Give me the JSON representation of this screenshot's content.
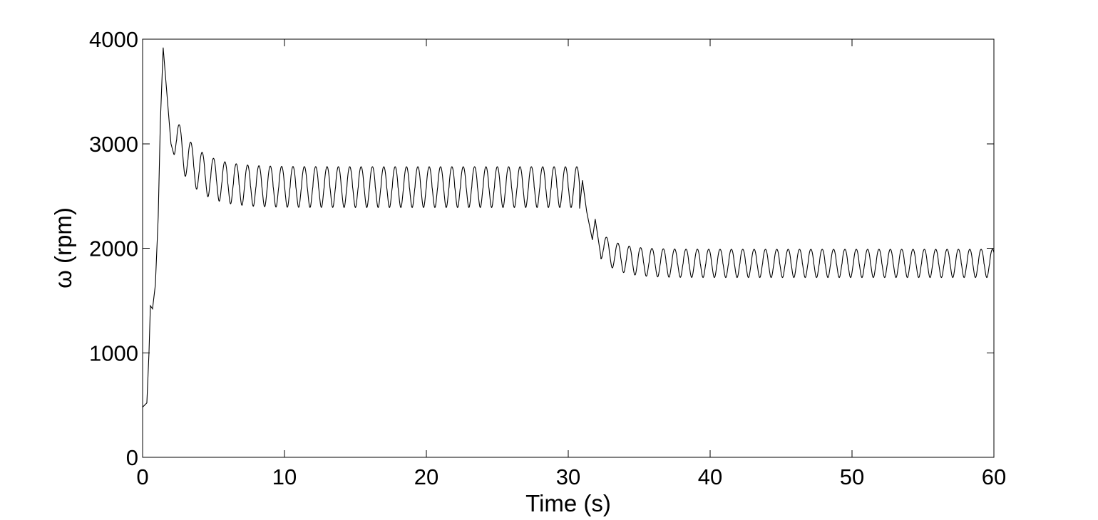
{
  "chart_data": {
    "type": "line",
    "xlabel": "Time (s)",
    "ylabel": "ω (rpm)",
    "xlim": [
      0,
      60
    ],
    "ylim": [
      0,
      4000
    ],
    "xticks": [
      "0",
      "10",
      "20",
      "30",
      "40",
      "50",
      "60"
    ],
    "yticks": [
      "0",
      "1000",
      "2000",
      "3000",
      "4000"
    ],
    "grid": false,
    "line_color": "#000000",
    "series": [
      {
        "description_points": [
          [
            0.0,
            480
          ],
          [
            0.3,
            520
          ],
          [
            0.45,
            1000
          ],
          [
            0.55,
            1450
          ],
          [
            0.7,
            1420
          ],
          [
            0.9,
            1650
          ],
          [
            1.1,
            2300
          ],
          [
            1.25,
            3200
          ],
          [
            1.45,
            3920
          ],
          [
            1.7,
            3500
          ],
          [
            2.0,
            3000
          ],
          [
            2.2,
            2900
          ]
        ],
        "segment1": {
          "start": 2.2,
          "end": 30.8,
          "period": 0.8,
          "peak_start": 3300,
          "trough_start": 2900,
          "peak_steady": 2780,
          "trough_steady": 2390,
          "settle": 1.5
        },
        "transition": [
          [
            30.8,
            2380
          ],
          [
            31.0,
            2650
          ],
          [
            31.3,
            2350
          ],
          [
            31.7,
            2080
          ],
          [
            31.9,
            2280
          ],
          [
            32.3,
            1920
          ]
        ],
        "segment2": {
          "start": 32.3,
          "end": 60.0,
          "period": 0.8,
          "peak_start": 2150,
          "trough_start": 1900,
          "peak_steady": 1990,
          "trough_steady": 1720,
          "settle": 1.2
        }
      }
    ]
  }
}
